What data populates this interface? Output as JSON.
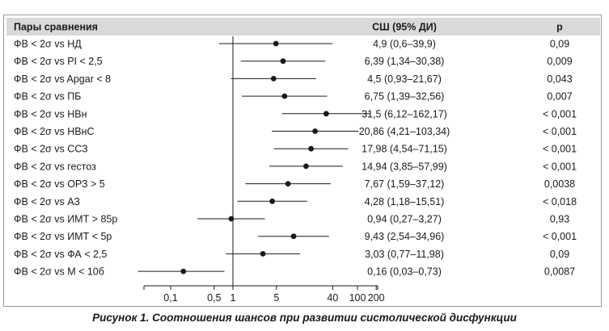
{
  "caption": "Рисунок 1. Соотношения шансов при развитии систолической дисфункции",
  "chart_data": {
    "type": "forest",
    "scale": "log",
    "headers": {
      "pairs": "Пары сравнения",
      "or": "СШ (95% ДИ)",
      "p": "p"
    },
    "xticks": [
      "0,1",
      "0,5",
      "1",
      "5",
      "40",
      "100",
      "200"
    ],
    "xtick_values": [
      0.1,
      0.5,
      1,
      5,
      40,
      100,
      200
    ],
    "xlim": [
      0.05,
      250
    ],
    "reference_line": 1,
    "rows": [
      {
        "label": "ФВ < 2σ vs НД",
        "or": 4.9,
        "lo": 0.6,
        "hi": 39.9,
        "or_text": "4,9 (0,6–39,9)",
        "p": "0,09"
      },
      {
        "label": "ФВ < 2σ vs PI < 2,5",
        "or": 6.39,
        "lo": 1.34,
        "hi": 30.38,
        "or_text": "6,39 (1,34–30,38)",
        "p": "0,009"
      },
      {
        "label": "ФВ < 2σ vs Apgar < 8",
        "or": 4.5,
        "lo": 0.93,
        "hi": 21.67,
        "or_text": "4,5 (0,93–21,67)",
        "p": "0,043"
      },
      {
        "label": "ФВ < 2σ vs ПБ",
        "or": 6.75,
        "lo": 1.39,
        "hi": 32.56,
        "or_text": "6,75 (1,39–32,56)",
        "p": "0,007"
      },
      {
        "label": "ФВ < 2σ vs НВн",
        "or": 31.5,
        "lo": 6.12,
        "hi": 162.17,
        "or_text": "31,5 (6,12–162,17)",
        "p": "< 0,001"
      },
      {
        "label": "ФВ < 2σ vs НВнС",
        "or": 20.86,
        "lo": 4.21,
        "hi": 103.34,
        "or_text": "20,86 (4,21–103,34)",
        "p": "< 0,001"
      },
      {
        "label": "ФВ < 2σ vs ССЗ",
        "or": 17.98,
        "lo": 4.54,
        "hi": 71.15,
        "or_text": "17,98 (4,54–71,15)",
        "p": "< 0,001"
      },
      {
        "label": "ФВ < 2σ vs гестоз",
        "or": 14.94,
        "lo": 3.85,
        "hi": 57.99,
        "or_text": "14,94 (3,85–57,99)",
        "p": "< 0,001"
      },
      {
        "label": "ФВ < 2σ vs ОРЗ > 5",
        "or": 7.67,
        "lo": 1.59,
        "hi": 37.12,
        "or_text": "7,67 (1,59–37,12)",
        "p": "0,0038"
      },
      {
        "label": "ФВ < 2σ vs АЗ",
        "or": 4.28,
        "lo": 1.18,
        "hi": 15.51,
        "or_text": "4,28 (1,18–15,51)",
        "p": "< 0,018"
      },
      {
        "label": "ФВ < 2σ vs ИМТ > 85р",
        "or": 0.94,
        "lo": 0.27,
        "hi": 3.27,
        "or_text": "0,94 (0,27–3,27)",
        "p": "0,93"
      },
      {
        "label": "ФВ < 2σ vs ИМТ < 5р",
        "or": 9.43,
        "lo": 2.54,
        "hi": 34.96,
        "or_text": "9,43 (2,54–34,96)",
        "p": "< 0,001"
      },
      {
        "label": "ФВ < 2σ vs ФА < 2,5",
        "or": 3.03,
        "lo": 0.77,
        "hi": 11.98,
        "or_text": "3,03 (0,77–11,98)",
        "p": "0,09"
      },
      {
        "label": "ФВ < 2σ vs М < 10б",
        "or": 0.16,
        "lo": 0.03,
        "hi": 0.73,
        "or_text": "0,16 (0,03–0,73)",
        "p": "0,0087"
      }
    ],
    "colors": {
      "header_band": "#d9d9d9",
      "marks": "#1a1a1a",
      "frame": "#9a9a9a"
    }
  }
}
